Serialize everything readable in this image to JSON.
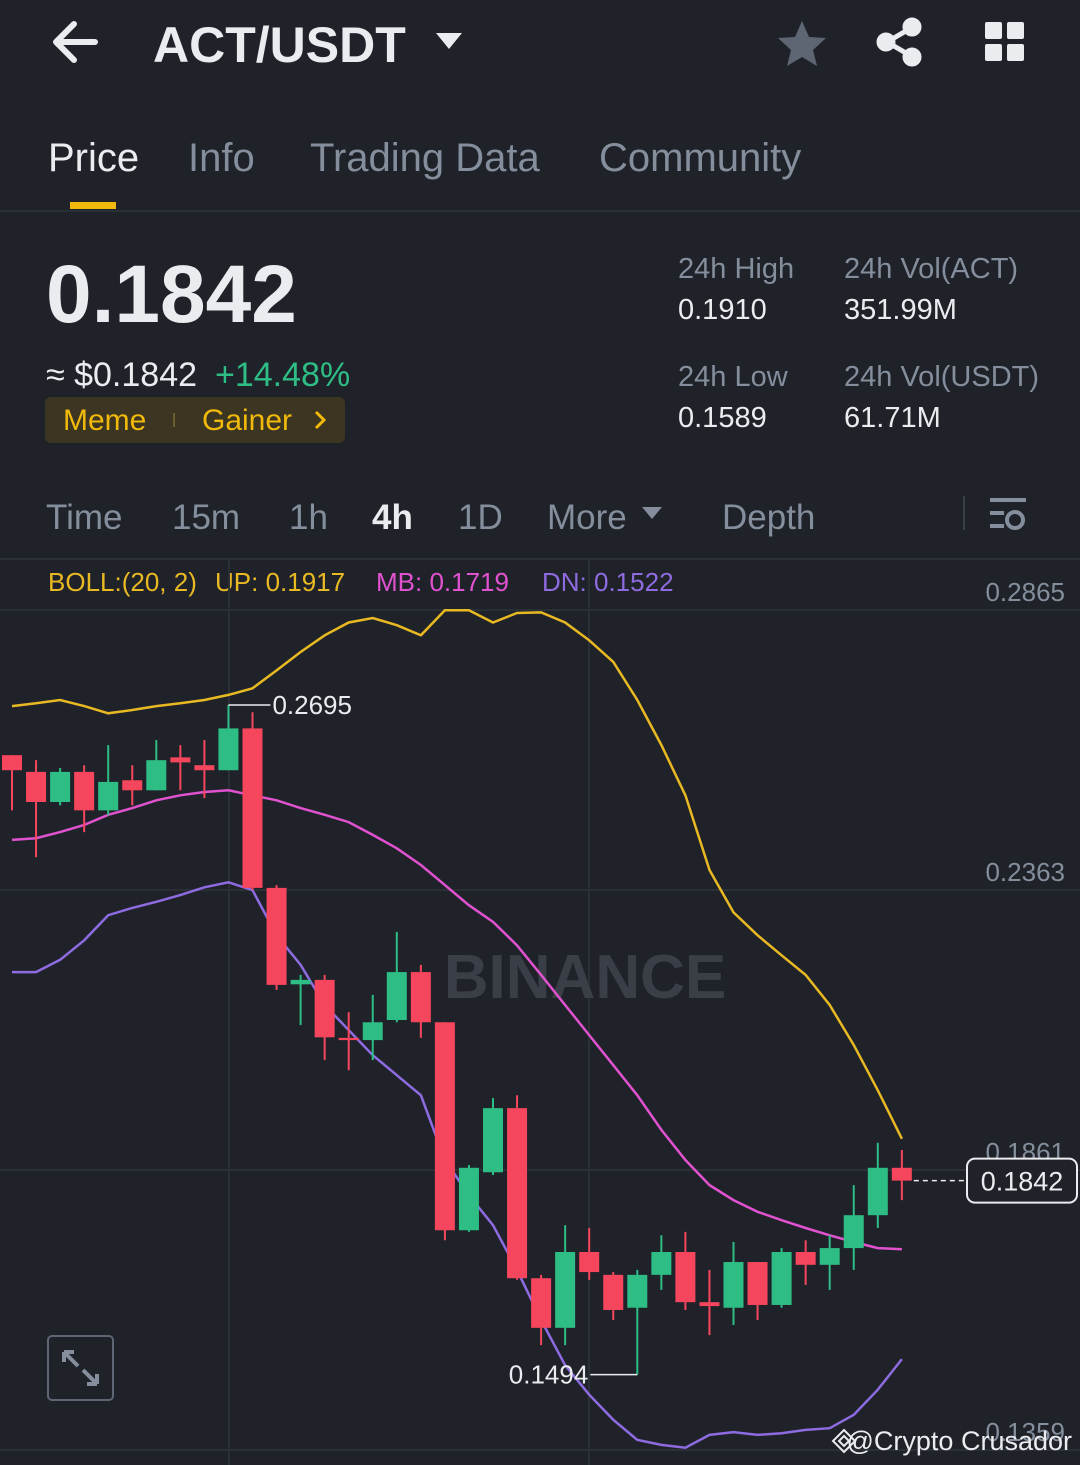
{
  "header": {
    "title": "ACT/USDT"
  },
  "tabs": [
    "Price",
    "Info",
    "Trading Data",
    "Community"
  ],
  "ticker": {
    "price": "0.1842",
    "usd": "≈ $0.1842",
    "change": "+14.48%",
    "tags": [
      "Meme",
      "Gainer"
    ],
    "stats": [
      {
        "label": "24h High",
        "value": "0.1910"
      },
      {
        "label": "24h Vol(ACT)",
        "value": "351.99M"
      },
      {
        "label": "24h Low",
        "value": "0.1589"
      },
      {
        "label": "24h Vol(USDT)",
        "value": "61.71M"
      }
    ]
  },
  "intervals": [
    "Time",
    "15m",
    "1h",
    "4h",
    "1D",
    "More",
    "Depth"
  ],
  "chart": {
    "type": "candlestick",
    "indicator": [
      "BOLL:(20, 2)",
      "UP: 0.1917",
      "MB: 0.1719",
      "DN: 0.1522"
    ],
    "ylim": [
      0.1332,
      0.2955
    ],
    "yticks": [
      0.2865,
      0.2363,
      0.1861,
      0.1359
    ],
    "up_color": "#2ebd85",
    "down_color": "#f6465d",
    "open": [
      0.2605,
      0.2575,
      0.2521,
      0.2575,
      0.2506,
      0.256,
      0.2542,
      0.2601,
      0.2587,
      0.2578,
      0.2653,
      0.2367,
      0.2194,
      0.2202,
      0.2098,
      0.2094,
      0.213,
      0.2216,
      0.2126,
      0.1753,
      0.1857,
      0.1972,
      0.1667,
      0.1578,
      0.1714,
      0.1673,
      0.1614,
      0.1673,
      0.1714,
      0.1624,
      0.1614,
      0.1696,
      0.1619,
      0.1714,
      0.1691,
      0.1721,
      0.178,
      0.1865
    ],
    "high": [
      0.2605,
      0.2596,
      0.2582,
      0.2587,
      0.2623,
      0.2587,
      0.2632,
      0.2623,
      0.2632,
      0.2695,
      0.2682,
      0.2372,
      0.2211,
      0.2211,
      0.2144,
      0.2175,
      0.2288,
      0.2229,
      0.2126,
      0.187,
      0.199,
      0.1995,
      0.1673,
      0.1762,
      0.1757,
      0.1678,
      0.1682,
      0.1744,
      0.175,
      0.1682,
      0.1732,
      0.1696,
      0.1721,
      0.1735,
      0.1744,
      0.1834,
      0.191,
      0.1897
    ],
    "low": [
      0.2506,
      0.2422,
      0.2515,
      0.2467,
      0.2497,
      0.2515,
      0.2542,
      0.2542,
      0.2528,
      0.2578,
      0.2363,
      0.2184,
      0.2121,
      0.2058,
      0.204,
      0.2058,
      0.2126,
      0.2098,
      0.1735,
      0.175,
      0.1852,
      0.1664,
      0.1547,
      0.1547,
      0.1664,
      0.1592,
      0.1494,
      0.1646,
      0.161,
      0.1565,
      0.1583,
      0.1592,
      0.1614,
      0.1655,
      0.1646,
      0.1682,
      0.1757,
      0.1807
    ],
    "close": [
      0.2578,
      0.2521,
      0.2575,
      0.2506,
      0.2557,
      0.2542,
      0.2596,
      0.2592,
      0.2578,
      0.2653,
      0.2367,
      0.2193,
      0.2202,
      0.2099,
      0.2094,
      0.2126,
      0.2216,
      0.2126,
      0.1753,
      0.1865,
      0.1972,
      0.1667,
      0.1578,
      0.1714,
      0.1678,
      0.161,
      0.1673,
      0.1714,
      0.1624,
      0.1617,
      0.1696,
      0.1619,
      0.1714,
      0.1691,
      0.1721,
      0.178,
      0.1865,
      0.1842
    ],
    "upper": {
      "color": "#e8b923",
      "values": [
        0.2693,
        0.2698,
        0.2704,
        0.2693,
        0.268,
        0.2686,
        0.2693,
        0.2698,
        0.2704,
        0.2713,
        0.2725,
        0.2757,
        0.279,
        0.282,
        0.2843,
        0.2851,
        0.2838,
        0.282,
        0.2865,
        0.2865,
        0.2843,
        0.286,
        0.2861,
        0.2843,
        0.2811,
        0.2772,
        0.2704,
        0.2623,
        0.2533,
        0.2399,
        0.2323,
        0.2282,
        0.2246,
        0.2211,
        0.2157,
        0.2085,
        0.2004,
        0.1917
      ]
    },
    "middle": {
      "color": "#e052cf",
      "values": [
        0.2453,
        0.2456,
        0.2467,
        0.248,
        0.2498,
        0.251,
        0.2524,
        0.2533,
        0.2539,
        0.2542,
        0.2533,
        0.2524,
        0.251,
        0.2498,
        0.2485,
        0.2462,
        0.2438,
        0.2408,
        0.2372,
        0.2336,
        0.2306,
        0.2264,
        0.2211,
        0.2157,
        0.2103,
        0.2049,
        0.1995,
        0.1933,
        0.1879,
        0.1834,
        0.1807,
        0.1786,
        0.1771,
        0.1757,
        0.1744,
        0.1732,
        0.1721,
        0.1719
      ]
    },
    "lower": {
      "color": "#8e6be0",
      "values": [
        0.2216,
        0.2216,
        0.2238,
        0.2273,
        0.2318,
        0.2331,
        0.2342,
        0.2354,
        0.2368,
        0.2377,
        0.2363,
        0.2282,
        0.2229,
        0.2157,
        0.2112,
        0.2067,
        0.2031,
        0.1995,
        0.1879,
        0.1816,
        0.1762,
        0.1682,
        0.1592,
        0.1511,
        0.1458,
        0.1413,
        0.1377,
        0.1368,
        0.1363,
        0.1386,
        0.1391,
        0.1386,
        0.1389,
        0.1395,
        0.1398,
        0.1422,
        0.1467,
        0.1522
      ]
    },
    "high_label": 0.2695,
    "low_label": 0.1494,
    "last_price": 0.1842,
    "watermark": "BINANCE"
  },
  "footer": {
    "credit": "@Crypto Crusador"
  }
}
